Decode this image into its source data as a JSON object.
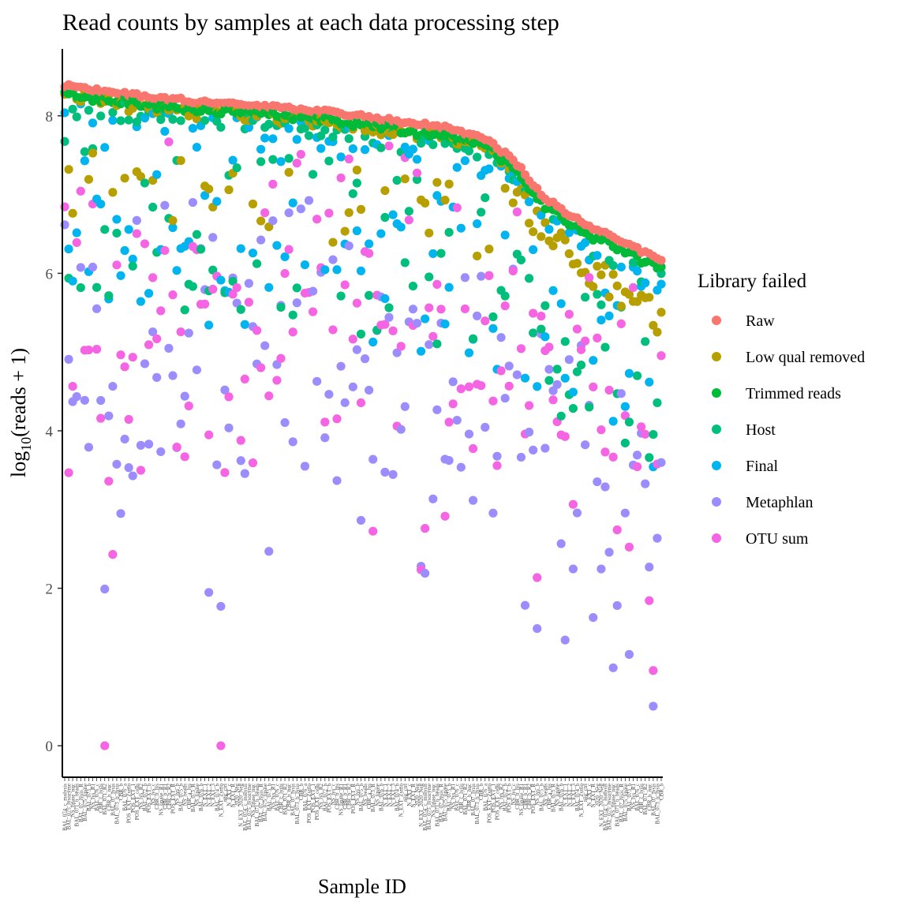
{
  "chart_data": {
    "type": "scatter",
    "title": "Read counts by samples at each data processing step",
    "xlabel": "Sample ID",
    "ylabel_prefix": "log",
    "ylabel_sub": "10",
    "ylabel_suffix": "(reads + 1)",
    "ylim": [
      -0.4,
      8.85
    ],
    "yticks": [
      0,
      2,
      4,
      6,
      8
    ],
    "grid": false,
    "legend_position": "right",
    "legend_title": "Library failed",
    "series": [
      {
        "name": "Raw",
        "color": "#F8766D"
      },
      {
        "name": "Low qual removed",
        "color": "#B79F00"
      },
      {
        "name": "Trimmed reads",
        "color": "#00BA38"
      },
      {
        "name": "Host",
        "color": "#00BF7D"
      },
      {
        "name": "Final",
        "color": "#00B4EF"
      },
      {
        "name": "Metaphlan",
        "color": "#9C8DFF"
      },
      {
        "name": "OTU sum",
        "color": "#F564E3"
      }
    ],
    "sample_count": 150,
    "sample_labels": [
      "BAL_074_c_molysis",
      "BAL_075_lysozyme",
      "NS_lipase_nuc",
      "BAL_071_b_beads",
      "BAL_07_lysis_R",
      "BAL_075_lipase",
      "BAL_073_b",
      "NS_lys_R1",
      "BAL_076_c",
      "CBR_c_lysis",
      "BAL_071_R2",
      "CBR_b_nuc",
      "BAL_07_lysis",
      "BAL_073_b_lysis",
      "CBR_b",
      "BAL_076_a",
      "POS_EXT_Zymo",
      "POS_EXT_1",
      "POS_EXT_cells",
      "NS_lys_R2",
      "BAL_072_b",
      "POS_EXT_b",
      "NS_lys_c",
      "CBR_b_lys",
      "NS_lipase_R1",
      "CBR_b_R1",
      "CBR_b_R2",
      "POS_EXT_R",
      "NS_lys_b",
      "BAL_075_b",
      "NS_beads",
      "CBR_a_lys",
      "BAL_073_R",
      "NS_lipase",
      "BAL_076_b",
      "N_EXT_1",
      "N_EXT_2",
      "N_EXT_3",
      "BAL_074_b",
      "N_EXT_Zymo",
      "neg_ctrl",
      "N_EXT_c",
      "N_EXT_R",
      "2020_Neg",
      "N_EXT_2020_Neg"
    ],
    "raw_anchors": [
      [
        0,
        8.38
      ],
      [
        12,
        8.3
      ],
      [
        25,
        8.22
      ],
      [
        40,
        8.15
      ],
      [
        60,
        8.08
      ],
      [
        80,
        7.96
      ],
      [
        95,
        7.85
      ],
      [
        105,
        7.7
      ],
      [
        112,
        7.45
      ],
      [
        120,
        6.95
      ],
      [
        130,
        6.62
      ],
      [
        140,
        6.4
      ],
      [
        149,
        6.15
      ]
    ]
  }
}
